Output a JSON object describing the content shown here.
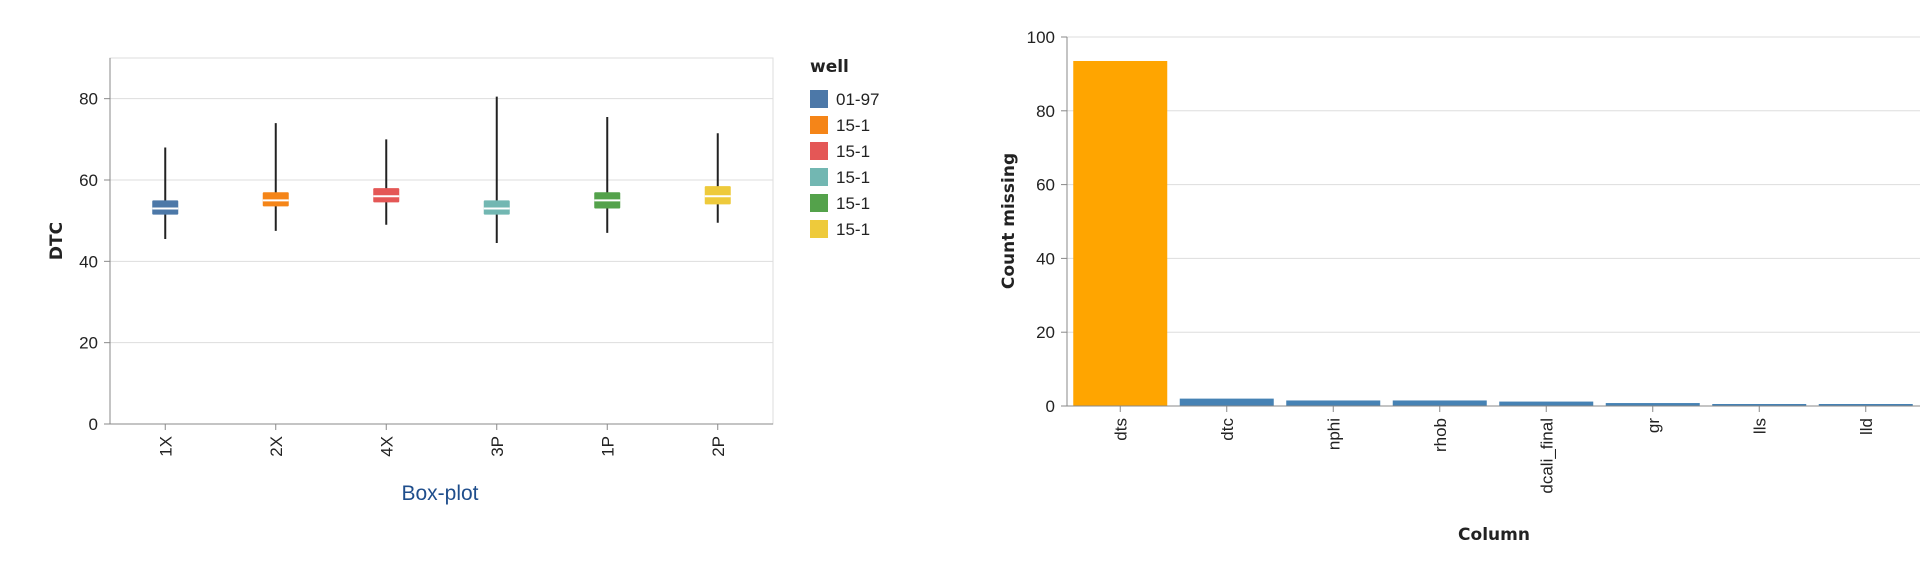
{
  "chart_data": [
    {
      "type": "box",
      "ylabel": "DTC",
      "ylim": [
        0,
        90
      ],
      "yticks": [
        0,
        20,
        40,
        60,
        80
      ],
      "categories": [
        "1X",
        "2X",
        "4X",
        "3P",
        "1P",
        "2P"
      ],
      "legend": {
        "title": "well",
        "placement": "right",
        "entries": [
          "01-97",
          "15-1",
          "15-1",
          "15-1",
          "15-1",
          "15-1"
        ]
      },
      "colors": [
        "#4c78a8",
        "#f58518",
        "#e45756",
        "#72b7b2",
        "#54a24b",
        "#eeca3b"
      ],
      "boxes": [
        {
          "category": "1X",
          "min": 45.5,
          "q1": 51.5,
          "median": 53,
          "q3": 55,
          "max": 68
        },
        {
          "category": "2X",
          "min": 47.5,
          "q1": 53.5,
          "median": 55,
          "q3": 57,
          "max": 74
        },
        {
          "category": "4X",
          "min": 49,
          "q1": 54.5,
          "median": 56,
          "q3": 58,
          "max": 70
        },
        {
          "category": "3P",
          "min": 44.5,
          "q1": 51.5,
          "median": 53,
          "q3": 55,
          "max": 80.5
        },
        {
          "category": "1P",
          "min": 47,
          "q1": 53,
          "median": 55,
          "q3": 57,
          "max": 75.5
        },
        {
          "category": "2P",
          "min": 49.5,
          "q1": 54,
          "median": 56,
          "q3": 58.5,
          "max": 71.5
        }
      ],
      "grid": true,
      "caption": "Box-plot"
    },
    {
      "type": "bar",
      "xlabel": "Column",
      "ylabel": "Count missing",
      "ylim": [
        0,
        100
      ],
      "yticks": [
        0,
        20,
        40,
        60,
        80,
        100
      ],
      "categories": [
        "dts",
        "dtc",
        "nphi",
        "rhob",
        "dcali_final",
        "gr",
        "lls",
        "lld"
      ],
      "values": [
        93.5,
        2,
        1.5,
        1.5,
        1.2,
        0.8,
        0.4,
        0.4
      ],
      "colors": [
        "#ffa500",
        "#4682b4",
        "#4682b4",
        "#4682b4",
        "#4682b4",
        "#4682b4",
        "#4682b4",
        "#4682b4"
      ],
      "grid": true
    }
  ]
}
